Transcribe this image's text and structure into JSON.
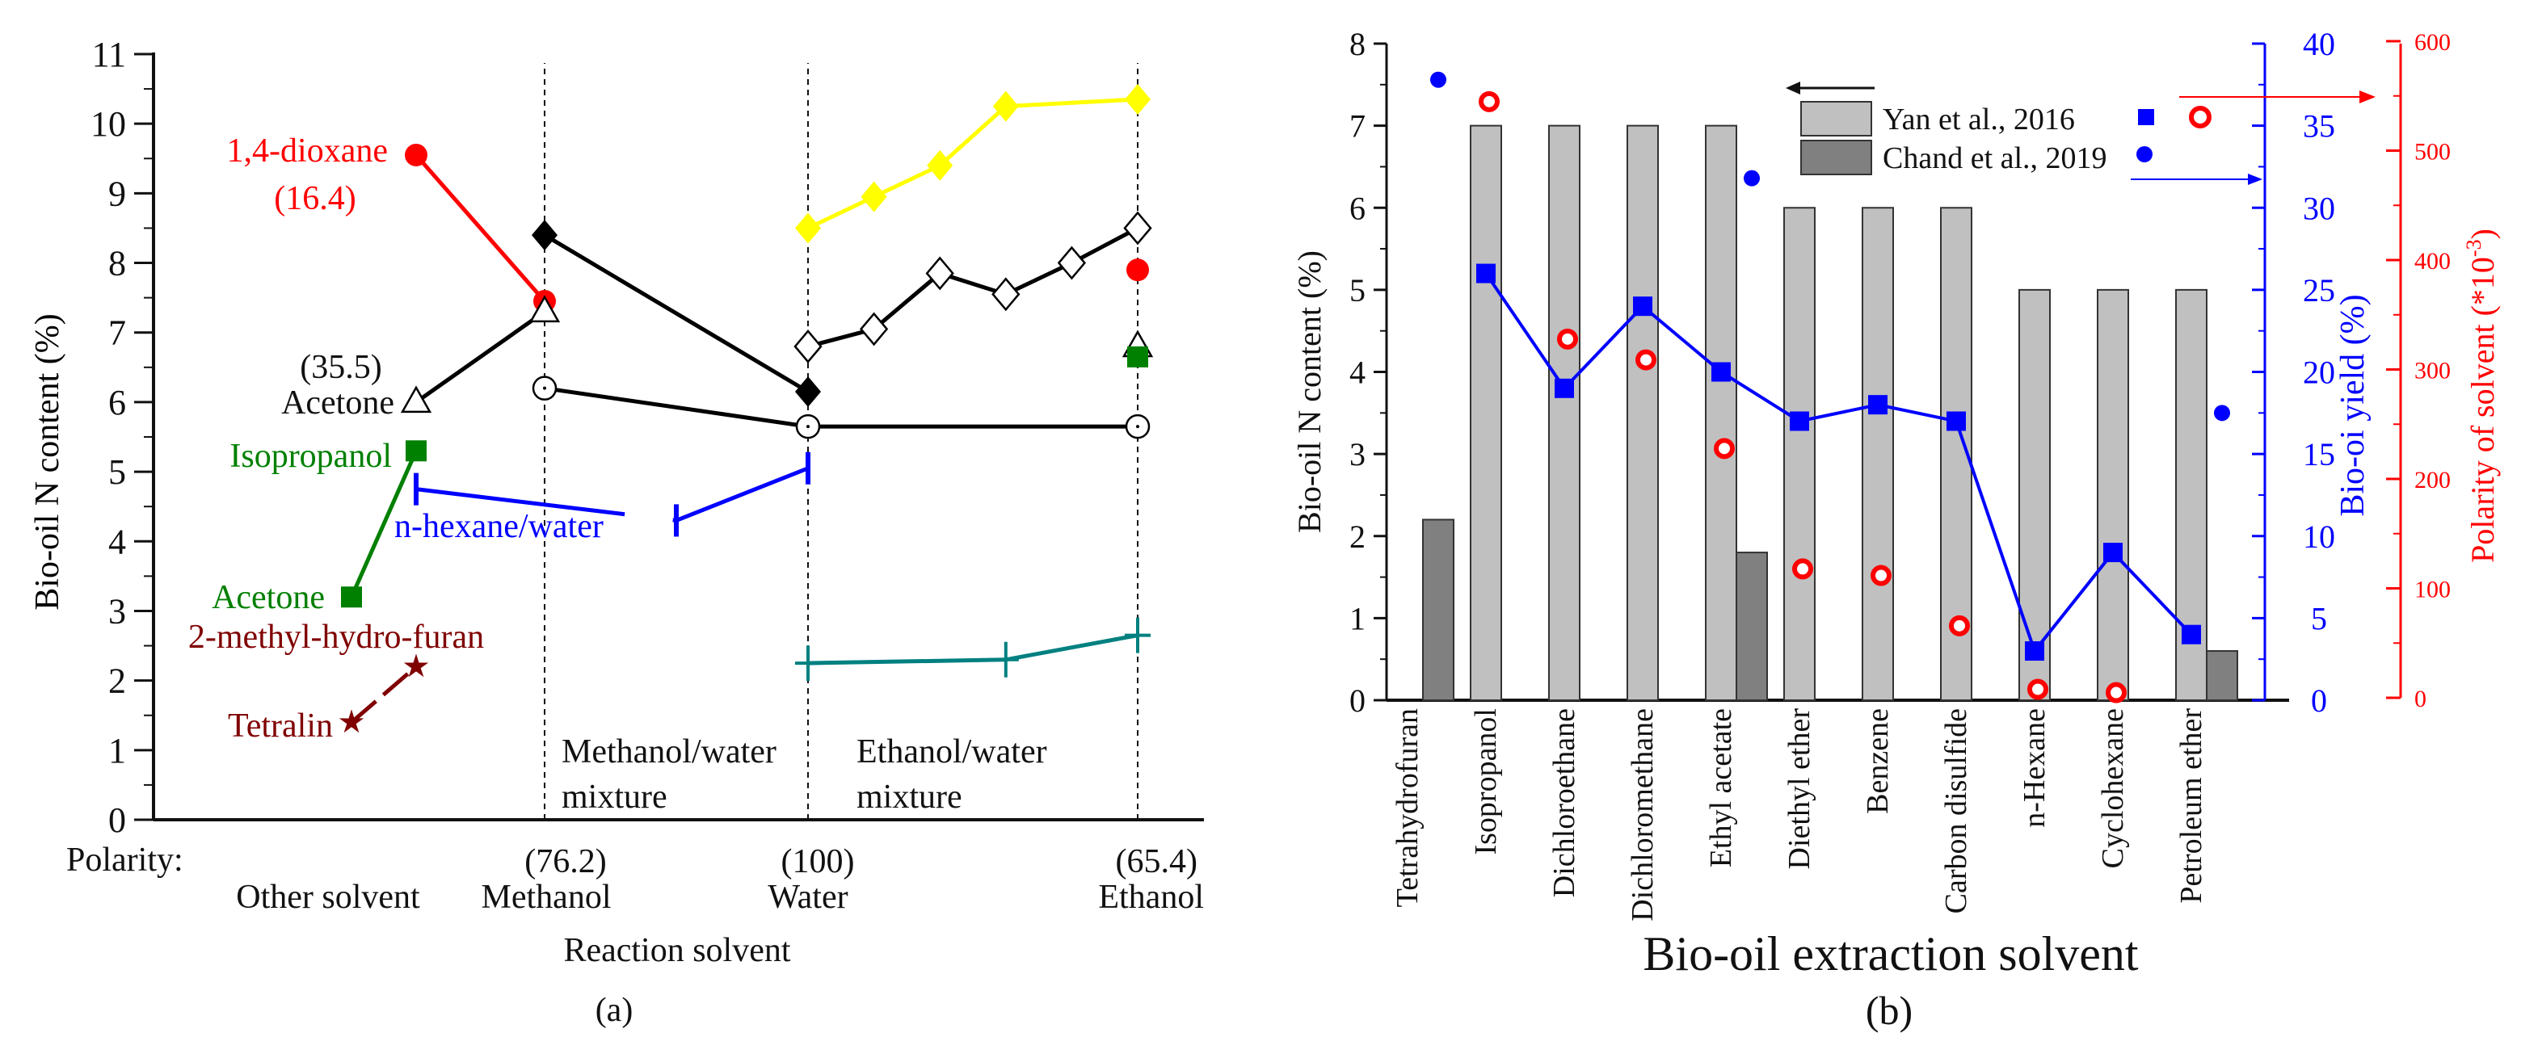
{
  "chart_data": [
    {
      "panel": "(a)",
      "type": "line",
      "ylabel": "Bio-oil N content (%)",
      "xlabel": "Reaction solvent",
      "ylim": [
        0,
        11
      ],
      "yticks": [
        "0",
        "1",
        "2",
        "3",
        "4",
        "5",
        "6",
        "7",
        "8",
        "9",
        "10",
        "11"
      ],
      "polarity_label": "Polarity:",
      "categories": [
        {
          "name": "Other solvent",
          "polarity": ""
        },
        {
          "name": "Methanol",
          "polarity": "(76.2)"
        },
        {
          "name": "Water",
          "polarity": "(100)"
        },
        {
          "name": "Ethanol",
          "polarity": "(65.4)"
        }
      ],
      "region_labels": {
        "methanol_water": [
          "Methanol/water",
          "mixture"
        ],
        "ethanol_water": [
          "Ethanol/water",
          "mixture"
        ]
      },
      "annotations": {
        "dioxane": "1,4-dioxane",
        "dioxane_polarity": "(16.4)",
        "acetone_polarity": "(35.5)",
        "acetone_black": "Acetone",
        "isopropanol": "Isopropanol",
        "nhexane_water": "n-hexane/water",
        "acetone_green": "Acetone",
        "methf": "2-methyl-hydro-furan",
        "tetralin": "Tetralin"
      },
      "series": [
        {
          "id": "dioxane",
          "color": "#ff0000",
          "marker": "circle",
          "line": true,
          "points": [
            [
              0.5,
              9.55
            ],
            [
              1,
              7.45
            ]
          ]
        },
        {
          "id": "dioxane-ethanol",
          "color": "#ff0000",
          "marker": "circle",
          "line": false,
          "points": [
            [
              3,
              7.9
            ]
          ]
        },
        {
          "id": "acetone-triangle",
          "color": "#000000",
          "marker": "triangle-open",
          "line": true,
          "points": [
            [
              0.5,
              6.0
            ],
            [
              1,
              7.3
            ]
          ]
        },
        {
          "id": "acetone-triangle-ethanol",
          "color": "#000000",
          "marker": "triangle-open",
          "line": false,
          "points": [
            [
              3,
              6.8
            ]
          ]
        },
        {
          "id": "filled-diamond",
          "color": "#000000",
          "marker": "diamond",
          "line": true,
          "points": [
            [
              1,
              8.4
            ],
            [
              2,
              6.15
            ]
          ]
        },
        {
          "id": "open-circle",
          "color": "#000000",
          "marker": "circle-open",
          "line": true,
          "points": [
            [
              1,
              6.2
            ],
            [
              2,
              5.65
            ],
            [
              3,
              5.65
            ]
          ]
        },
        {
          "id": "yellow-diamond",
          "color": "#ffff00",
          "marker": "diamond",
          "line": true,
          "points": [
            [
              2,
              8.5
            ],
            [
              2.2,
              8.95
            ],
            [
              2.4,
              9.4
            ],
            [
              2.6,
              10.25
            ],
            [
              3,
              10.35
            ]
          ]
        },
        {
          "id": "open-diamond",
          "color": "#000000",
          "marker": "diamond-open",
          "line": true,
          "points": [
            [
              2,
              6.8
            ],
            [
              2.2,
              7.05
            ],
            [
              2.4,
              7.85
            ],
            [
              2.6,
              7.55
            ],
            [
              2.8,
              8.0
            ],
            [
              3,
              8.5
            ]
          ]
        },
        {
          "id": "green-square",
          "color": "#008000",
          "marker": "square",
          "line": true,
          "points": [
            [
              0.25,
              3.2
            ],
            [
              0.5,
              5.3
            ]
          ]
        },
        {
          "id": "green-square-ethanol",
          "color": "#008000",
          "marker": "square",
          "line": false,
          "points": [
            [
              3,
              6.65
            ]
          ]
        },
        {
          "id": "nhexane-water",
          "color": "#0000ff",
          "marker": "vbar",
          "line": true,
          "points": [
            [
              0.5,
              4.75
            ],
            [
              1.5,
              4.3
            ],
            [
              2,
              5.05
            ]
          ]
        },
        {
          "id": "teal-plus",
          "color": "#008080",
          "marker": "plus",
          "line": true,
          "points": [
            [
              2,
              2.25
            ],
            [
              2.6,
              2.3
            ],
            [
              3,
              2.65
            ]
          ]
        },
        {
          "id": "stars",
          "color": "#800000",
          "marker": "star",
          "line": true,
          "points": [
            [
              0.25,
              1.4
            ],
            [
              0.5,
              2.2
            ]
          ]
        }
      ]
    },
    {
      "panel": "(b)",
      "type": "bar",
      "xlabel": "Bio-oil extraction solvent",
      "ylabel": "Bio-oil N content (%)",
      "y2label": "Bio-oi yield (%)",
      "y3label_main": "Polarity of solvent (*10",
      "y3label_sup": "-3",
      "y3label_end": ")",
      "ylim": [
        0,
        8
      ],
      "y2lim": [
        0,
        40
      ],
      "y3lim": [
        0,
        600
      ],
      "yticks": [
        "0",
        "1",
        "2",
        "3",
        "4",
        "5",
        "6",
        "7",
        "8"
      ],
      "y2ticks": [
        "0",
        "5",
        "10",
        "15",
        "20",
        "25",
        "30",
        "35",
        "40"
      ],
      "y3ticks": [
        "0",
        "100",
        "200",
        "300",
        "400",
        "500",
        "600"
      ],
      "categories": [
        "Tetrahydrofuran",
        "Isopropanol",
        "Dichloroethane",
        "Dichloromethane",
        "Ethyl acetate",
        "Diethyl ether",
        "Benzene",
        "Carbon disulfide",
        "n-Hexane",
        "Cyclohexane",
        "Petroleum ether"
      ],
      "legend": {
        "yan": "Yan et al., 2016",
        "chand": "Chand et al., 2019",
        "placement": "top-right"
      },
      "colors": {
        "yan_bar": "#c0c0c0",
        "chand_bar": "#808080",
        "yield": "#0000ff",
        "polarity": "#ff0000"
      },
      "yan_n_content": [
        null,
        7,
        7,
        7,
        7,
        6,
        6,
        6,
        5,
        5,
        5
      ],
      "chand_n_content": [
        2.2,
        null,
        null,
        null,
        1.8,
        null,
        null,
        null,
        null,
        null,
        0.6
      ],
      "yan_yield": [
        null,
        26,
        19,
        24,
        20,
        17,
        18,
        17,
        3,
        9,
        4
      ],
      "chand_yield": [
        37.8,
        null,
        null,
        null,
        31.8,
        null,
        null,
        null,
        null,
        null,
        17.5
      ],
      "yan_polarity": [
        null,
        547,
        330,
        311,
        230,
        120,
        114,
        68,
        10,
        7,
        null
      ]
    }
  ]
}
